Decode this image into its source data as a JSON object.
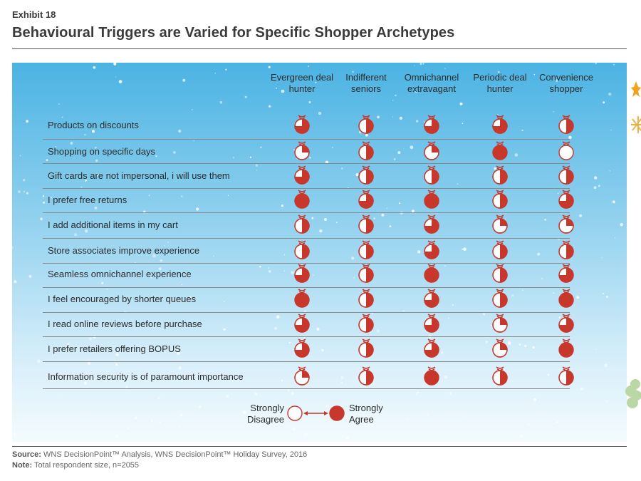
{
  "exhibit_label": "Exhibit 18",
  "title": "Behavioural Triggers are Varied for Specific Shopper Archetypes",
  "chart_data": {
    "type": "table",
    "scale": {
      "min_label": "Strongly Disagree",
      "max_label": "Strongly Agree",
      "min": 0,
      "max": 1
    },
    "columns": [
      "Evergreen deal hunter",
      "Indifferent seniors",
      "Omnichannel extravagant",
      "Periodic deal hunter",
      "Convenience shopper"
    ],
    "rows": [
      {
        "label": "Products on discounts",
        "values": [
          0.75,
          0.5,
          0.75,
          0.75,
          0.5
        ]
      },
      {
        "label": "Shopping on specific days",
        "values": [
          0.25,
          0.5,
          0.25,
          1.0,
          0.0
        ]
      },
      {
        "label": "Gift cards are not impersonal, i will use them",
        "values": [
          0.75,
          0.5,
          0.5,
          0.5,
          0.5
        ]
      },
      {
        "label": "I prefer free returns",
        "values": [
          1.0,
          0.75,
          1.0,
          0.5,
          0.75
        ]
      },
      {
        "label": "I add additional items in my cart",
        "values": [
          0.5,
          0.5,
          0.75,
          0.25,
          0.25
        ]
      },
      {
        "label": "Store associates improve experience",
        "values": [
          0.5,
          0.5,
          0.75,
          0.5,
          0.5
        ]
      },
      {
        "label": "Seamless omnichannel experience",
        "values": [
          0.75,
          0.5,
          1.0,
          0.5,
          0.75
        ]
      },
      {
        "label": "I feel encouraged by shorter queues",
        "values": [
          1.0,
          0.5,
          0.75,
          0.5,
          1.0
        ]
      },
      {
        "label": "I read online reviews before purchase",
        "values": [
          0.75,
          0.5,
          0.75,
          0.25,
          0.75
        ]
      },
      {
        "label": "I prefer retailers offering BOPUS",
        "values": [
          0.75,
          0.5,
          0.75,
          0.25,
          1.0
        ]
      },
      {
        "label": "Information security is of paramount importance",
        "values": [
          0.25,
          0.5,
          1.0,
          0.5,
          0.5
        ]
      }
    ]
  },
  "legend": {
    "left_line1": "Strongly",
    "left_line2": "Disagree",
    "right_line1": "Strongly",
    "right_line2": "Agree"
  },
  "footnotes": {
    "source_label": "Source:",
    "source_text": "WNS DecisionPoint™ Analysis, WNS DecisionPoint™ Holiday Survey, 2016",
    "note_label": "Note:",
    "note_text": "Total respondent size, n=2055"
  },
  "colors": {
    "ball": "#c8372b",
    "ball_empty": "#ffffff",
    "sky_top": "#4bb3e3",
    "sky_bottom": "#f4fbfe",
    "text": "#2b2b2b"
  }
}
